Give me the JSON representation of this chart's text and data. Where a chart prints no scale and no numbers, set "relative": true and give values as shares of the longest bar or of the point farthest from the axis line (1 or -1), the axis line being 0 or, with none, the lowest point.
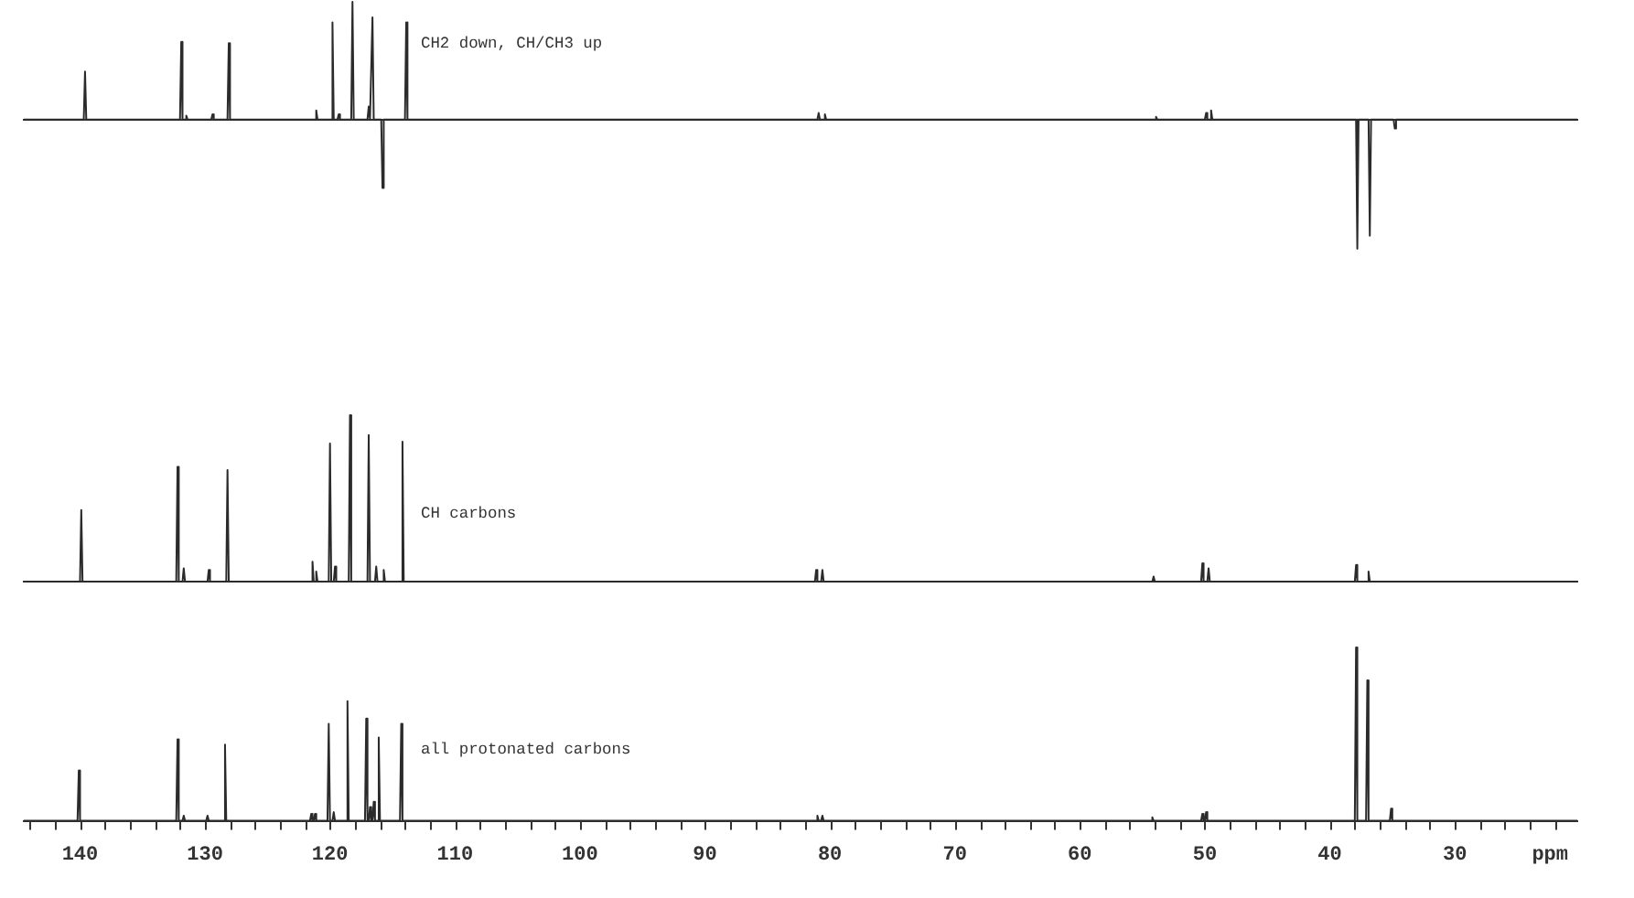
{
  "chart_data": [
    {
      "type": "line",
      "title": "CH2 down, CH/CH3 up",
      "relative": true,
      "tick_labels": false,
      "xlim": [
        144.5,
        20.2
      ],
      "color": "#2b2b2b",
      "x": [
        144.5,
        139.7,
        139.6,
        139.5,
        132.0,
        131.9,
        131.8,
        131.6,
        131.5,
        131.4,
        129.5,
        129.4,
        129.3,
        128.2,
        128.1,
        128.0,
        121.2,
        121.1,
        121.0,
        119.9,
        119.8,
        119.7,
        119.4,
        119.3,
        119.2,
        118.3,
        118.2,
        118.1,
        117.0,
        116.9,
        116.8,
        116.7,
        116.6,
        116.5,
        115.9,
        115.8,
        115.7,
        114.0,
        113.9,
        113.8,
        81.0,
        80.9,
        80.8,
        80.5,
        80.4,
        80.3,
        54.0,
        53.9,
        53.8,
        50.0,
        49.9,
        49.8,
        49.6,
        49.5,
        49.4,
        37.9,
        37.8,
        37.7,
        36.9,
        36.8,
        36.7,
        34.9,
        34.8,
        34.7,
        20.2
      ],
      "values": [
        0,
        0,
        0.37,
        0,
        0,
        0.6,
        0,
        0,
        0.03,
        0,
        0,
        0.04,
        0,
        0,
        0.59,
        0,
        0,
        0.07,
        0,
        0,
        0.75,
        0,
        0,
        0.04,
        0,
        0,
        0.91,
        0,
        0,
        0.1,
        0,
        0,
        0.79,
        0,
        0,
        -0.53,
        0,
        0,
        0.75,
        0,
        0,
        0.05,
        0,
        0,
        0.04,
        0,
        0,
        0.02,
        0,
        0,
        0.05,
        0,
        0,
        0.07,
        0,
        0,
        -1,
        0,
        0,
        -0.9,
        0,
        0,
        -0.07,
        0,
        0
      ]
    },
    {
      "type": "line",
      "title": "CH carbons",
      "relative": true,
      "tick_labels": false,
      "xlim": [
        144.5,
        20.2
      ],
      "color": "#2b2b2b",
      "x": [
        144.5,
        140.0,
        139.9,
        139.8,
        132.3,
        132.2,
        132.1,
        131.8,
        131.7,
        131.6,
        129.8,
        129.7,
        129.6,
        128.3,
        128.2,
        128.1,
        121.5,
        121.4,
        121.3,
        121.2,
        121.1,
        121.0,
        120.1,
        120.0,
        119.9,
        119.7,
        119.6,
        119.5,
        118.5,
        118.4,
        118.3,
        117.0,
        116.9,
        116.8,
        116.4,
        116.3,
        116.2,
        115.8,
        115.7,
        115.6,
        114.3,
        114.2,
        114.1,
        81.2,
        81.1,
        81.0,
        80.7,
        80.6,
        80.5,
        54.2,
        54.1,
        54.0,
        50.3,
        50.2,
        50.1,
        49.8,
        49.7,
        49.6,
        38.0,
        37.9,
        37.8,
        37.0,
        36.9,
        36.8,
        20.2
      ],
      "values": [
        0,
        0,
        0.43,
        0,
        0,
        0.69,
        0,
        0,
        0.08,
        0,
        0,
        0.07,
        0,
        0,
        0.67,
        0,
        0,
        0.12,
        0,
        0,
        0.06,
        0,
        0,
        0.83,
        0,
        0,
        0.09,
        0,
        0,
        1,
        0,
        0,
        0.88,
        0,
        0,
        0.09,
        0,
        0,
        0.07,
        0,
        0,
        0.84,
        0,
        0,
        0.07,
        0,
        0,
        0.07,
        0,
        0,
        0.03,
        0,
        0,
        0.11,
        0,
        0,
        0.08,
        0,
        0,
        0.1,
        0,
        0,
        0.06,
        0,
        0
      ]
    },
    {
      "type": "line",
      "title": "all protonated carbons",
      "relative": true,
      "xlabel": "ppm",
      "xlim": [
        144.5,
        20.2
      ],
      "color": "#2b2b2b",
      "xticks": [
        {
          "value": 144,
          "label": null
        },
        {
          "value": 142,
          "label": null
        },
        140,
        {
          "value": 138,
          "label": null
        },
        {
          "value": 136,
          "label": null
        },
        {
          "value": 134,
          "label": null
        },
        {
          "value": 132,
          "label": null
        },
        130,
        {
          "value": 128,
          "label": null
        },
        {
          "value": 126,
          "label": null
        },
        {
          "value": 124,
          "label": null
        },
        {
          "value": 122,
          "label": null
        },
        120,
        {
          "value": 118,
          "label": null
        },
        {
          "value": 116,
          "label": null
        },
        {
          "value": 114,
          "label": null
        },
        {
          "value": 112,
          "label": null
        },
        110,
        {
          "value": 108,
          "label": null
        },
        {
          "value": 106,
          "label": null
        },
        {
          "value": 104,
          "label": null
        },
        {
          "value": 102,
          "label": null
        },
        100,
        {
          "value": 98,
          "label": null
        },
        {
          "value": 96,
          "label": null
        },
        {
          "value": 94,
          "label": null
        },
        {
          "value": 92,
          "label": null
        },
        90,
        {
          "value": 88,
          "label": null
        },
        {
          "value": 86,
          "label": null
        },
        {
          "value": 84,
          "label": null
        },
        {
          "value": 82,
          "label": null
        },
        80,
        {
          "value": 78,
          "label": null
        },
        {
          "value": 76,
          "label": null
        },
        {
          "value": 74,
          "label": null
        },
        {
          "value": 72,
          "label": null
        },
        70,
        {
          "value": 68,
          "label": null
        },
        {
          "value": 66,
          "label": null
        },
        {
          "value": 64,
          "label": null
        },
        {
          "value": 62,
          "label": null
        },
        60,
        {
          "value": 58,
          "label": null
        },
        {
          "value": 56,
          "label": null
        },
        {
          "value": 54,
          "label": null
        },
        {
          "value": 52,
          "label": null
        },
        50,
        {
          "value": 48,
          "label": null
        },
        {
          "value": 46,
          "label": null
        },
        {
          "value": 44,
          "label": null
        },
        {
          "value": 42,
          "label": null
        },
        40,
        {
          "value": 38,
          "label": null
        },
        {
          "value": 36,
          "label": null
        },
        {
          "value": 34,
          "label": null
        },
        {
          "value": 32,
          "label": null
        },
        30,
        {
          "value": 28,
          "label": null
        },
        {
          "value": 26,
          "label": null
        },
        {
          "value": 24,
          "label": null
        },
        {
          "value": 22,
          "label": null
        }
      ],
      "x": [
        144.5,
        140.2,
        140.1,
        140.0,
        132.3,
        132.2,
        132.1,
        131.8,
        131.7,
        131.6,
        129.9,
        129.8,
        129.7,
        128.5,
        128.4,
        128.3,
        121.6,
        121.5,
        121.4,
        121.3,
        121.2,
        121.1,
        120.2,
        120.1,
        120.0,
        119.8,
        119.7,
        119.6,
        118.7,
        118.6,
        118.5,
        117.2,
        117.1,
        117.0,
        116.9,
        116.8,
        116.7,
        116.6,
        116.5,
        116.4,
        116.2,
        116.1,
        116.0,
        114.4,
        114.3,
        114.2,
        81.1,
        81.0,
        80.9,
        80.7,
        80.6,
        80.5,
        54.3,
        54.2,
        54.1,
        50.3,
        50.2,
        50.1,
        50.0,
        49.9,
        49.8,
        38.0,
        37.9,
        37.8,
        37.1,
        37.0,
        36.9,
        35.2,
        35.1,
        35.0,
        20.2
      ],
      "values": [
        0,
        0,
        0.29,
        0,
        0,
        0.47,
        0,
        0,
        0.03,
        0,
        0,
        0.03,
        0,
        0,
        0.44,
        0,
        0,
        0.04,
        0,
        0,
        0.04,
        0,
        0,
        0.56,
        0,
        0,
        0.05,
        0,
        0,
        0.69,
        0,
        0,
        0.59,
        0,
        0,
        0.08,
        0,
        0,
        0.11,
        0,
        0,
        0.48,
        0,
        0,
        0.56,
        0,
        0,
        0.03,
        0,
        0,
        0.03,
        0,
        0,
        0.02,
        0,
        0,
        0.04,
        0,
        0,
        0.05,
        0,
        0,
        1,
        0,
        0,
        0.81,
        0,
        0,
        0.07,
        0,
        0
      ]
    }
  ]
}
